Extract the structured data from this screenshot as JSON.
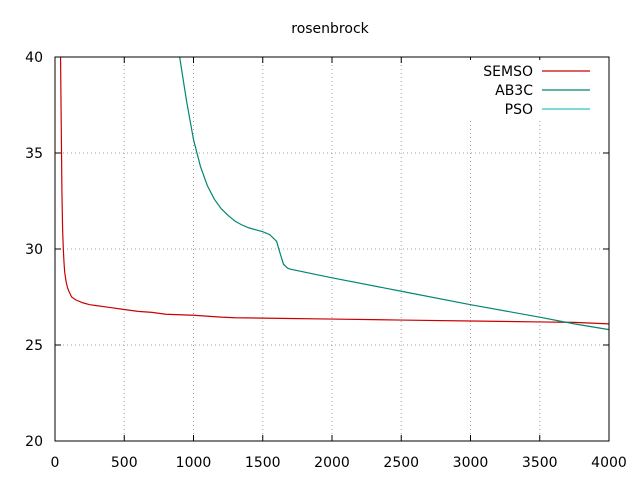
{
  "chart_data": {
    "type": "line",
    "title": "rosenbrock",
    "xlabel": "",
    "ylabel": "",
    "xlim": [
      0,
      4000
    ],
    "ylim": [
      20,
      40
    ],
    "xticks": [
      0,
      500,
      1000,
      1500,
      2000,
      2500,
      3000,
      3500,
      4000
    ],
    "yticks": [
      20,
      25,
      30,
      35,
      40
    ],
    "grid": true,
    "legend_position": "top-right",
    "series": [
      {
        "name": "SEMSO",
        "color": "#cc0000",
        "x": [
          40,
          45,
          50,
          55,
          60,
          65,
          70,
          80,
          90,
          100,
          120,
          150,
          200,
          250,
          300,
          400,
          500,
          600,
          700,
          800,
          1000,
          1200,
          1300,
          1500,
          1700,
          2000,
          2500,
          3000,
          3500,
          3750,
          4000
        ],
        "y": [
          40,
          36.5,
          33,
          31,
          30,
          29.3,
          28.8,
          28.3,
          28.0,
          27.8,
          27.5,
          27.35,
          27.2,
          27.1,
          27.05,
          26.95,
          26.85,
          26.75,
          26.7,
          26.6,
          26.55,
          26.45,
          26.42,
          26.4,
          26.38,
          26.35,
          26.3,
          26.25,
          26.2,
          26.18,
          26.1
        ]
      },
      {
        "name": "AB3C",
        "color": "#00876f",
        "x": [
          900,
          950,
          1000,
          1050,
          1100,
          1150,
          1200,
          1250,
          1300,
          1350,
          1400,
          1450,
          1500,
          1550,
          1600,
          1620,
          1650,
          1680,
          1700,
          1800,
          2000,
          2500,
          3000,
          3500,
          3750,
          4000
        ],
        "y": [
          40,
          37.7,
          35.7,
          34.3,
          33.3,
          32.6,
          32.1,
          31.75,
          31.45,
          31.25,
          31.1,
          31.0,
          30.9,
          30.75,
          30.4,
          29.9,
          29.2,
          29.0,
          28.95,
          28.8,
          28.5,
          27.8,
          27.1,
          26.45,
          26.1,
          25.8
        ]
      },
      {
        "name": "PSO",
        "color": "#2ec4c4",
        "x": [],
        "y": []
      }
    ]
  }
}
